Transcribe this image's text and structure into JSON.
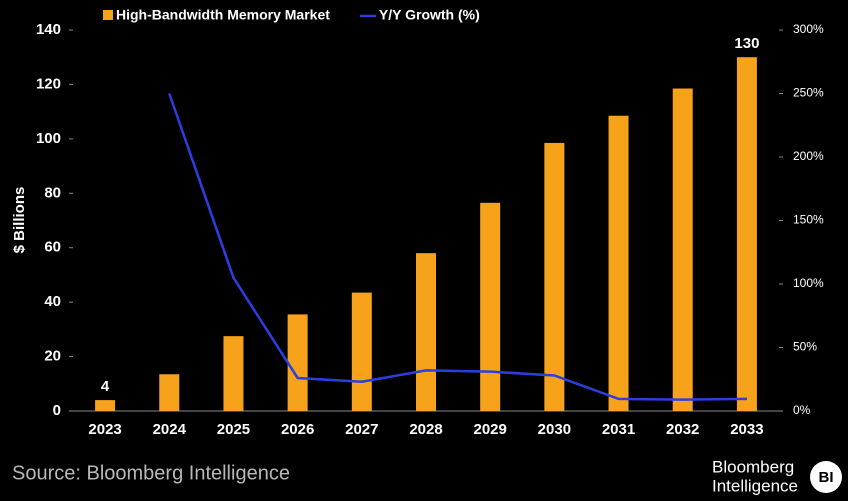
{
  "chart_data": {
    "type": "bar",
    "categories": [
      "2023",
      "2024",
      "2025",
      "2026",
      "2027",
      "2028",
      "2029",
      "2030",
      "2031",
      "2032",
      "2033"
    ],
    "series": [
      {
        "name": "High-Bandwidth Memory Market",
        "type": "bar",
        "color": "#f7a21b",
        "values": [
          4,
          13.5,
          27.5,
          35.5,
          43.5,
          58,
          76.5,
          98.5,
          108.5,
          118.5,
          130
        ],
        "value_labels": [
          "4",
          null,
          null,
          null,
          null,
          null,
          null,
          null,
          null,
          null,
          "130"
        ]
      },
      {
        "name": "Y/Y Growth (%)",
        "type": "line",
        "color": "#2b3fe0",
        "axis": "y2",
        "values": [
          null,
          250,
          105,
          26,
          23,
          32,
          31,
          28,
          9.5,
          9,
          9.5
        ]
      }
    ],
    "y_label": "$ Billions",
    "ylim": [
      0,
      140
    ],
    "yticks": [
      0,
      20,
      40,
      60,
      80,
      100,
      120,
      140
    ],
    "y2lim": [
      0,
      300
    ],
    "y2ticks": [
      {
        "value": 0,
        "label": "0%"
      },
      {
        "value": 50,
        "label": "50%"
      },
      {
        "value": 100,
        "label": "100%"
      },
      {
        "value": 150,
        "label": "150%"
      },
      {
        "value": 200,
        "label": "200%"
      },
      {
        "value": 250,
        "label": "250%"
      },
      {
        "value": 300,
        "label": "300%"
      }
    ],
    "legend": "top",
    "source": "Source: Bloomberg Intelligence",
    "brand": {
      "line1": "Bloomberg",
      "line2": "Intelligence",
      "badge": "BI"
    }
  }
}
